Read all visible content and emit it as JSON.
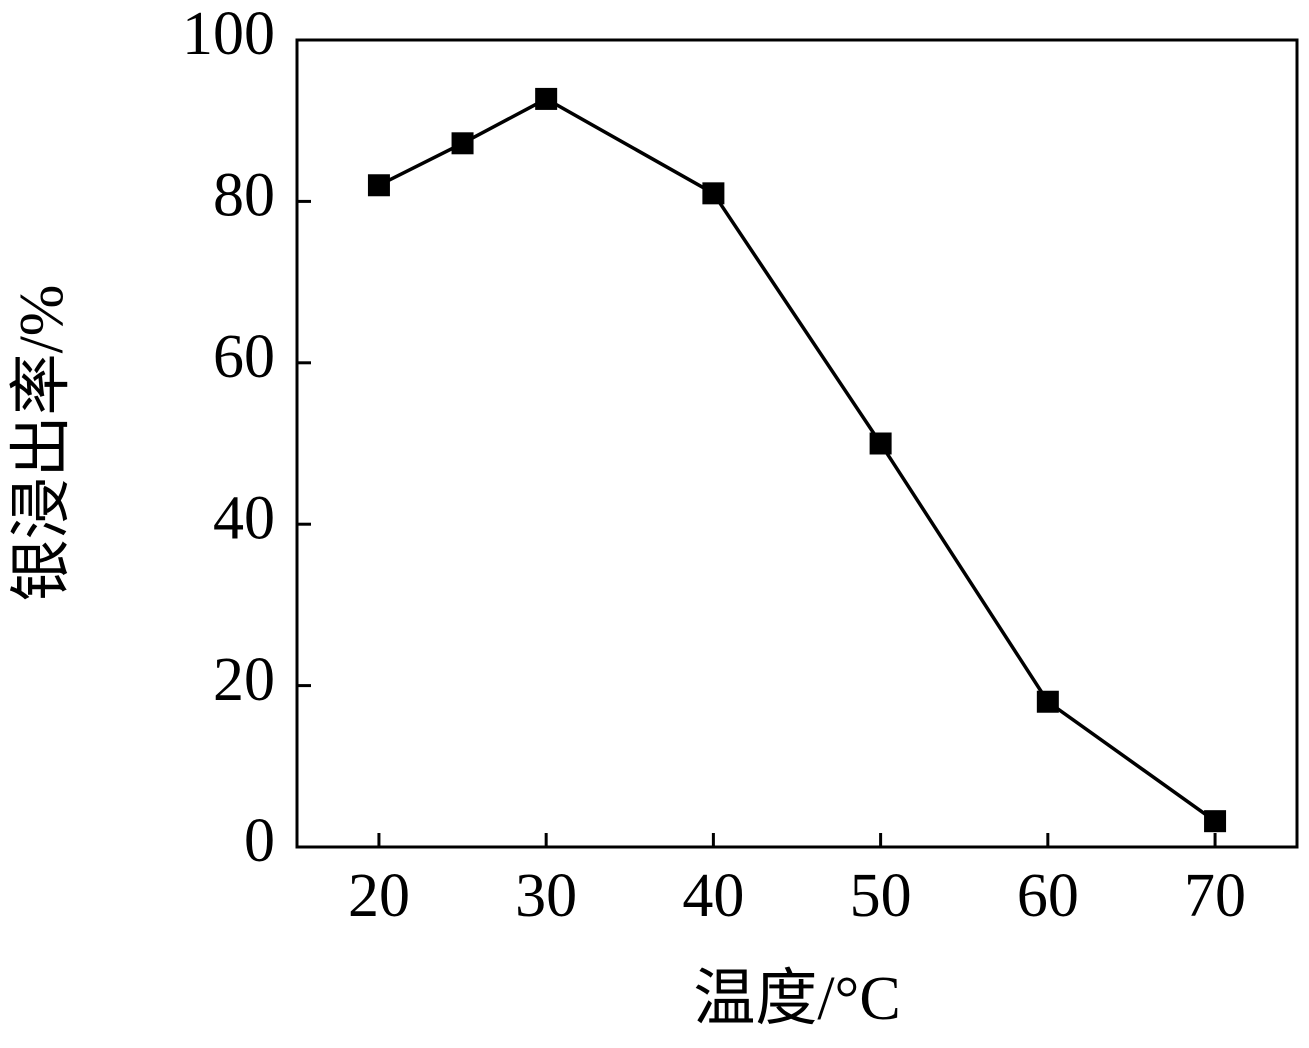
{
  "chart_data": {
    "type": "line",
    "x_label": "温度/°C",
    "y_label": "银浸出率/%",
    "x": [
      20,
      25,
      30,
      40,
      50,
      60,
      70
    ],
    "series": [
      {
        "name": null,
        "color": "#000000",
        "values": [
          82,
          87.2,
          92.7,
          81,
          50,
          18,
          3.2
        ]
      }
    ],
    "xlim": [
      15.1,
      74.9
    ],
    "xticks": [
      20,
      30,
      40,
      50,
      60,
      70
    ],
    "ylim": [
      0,
      100
    ],
    "yticks": [
      0,
      20,
      40,
      60,
      80,
      100
    ]
  }
}
